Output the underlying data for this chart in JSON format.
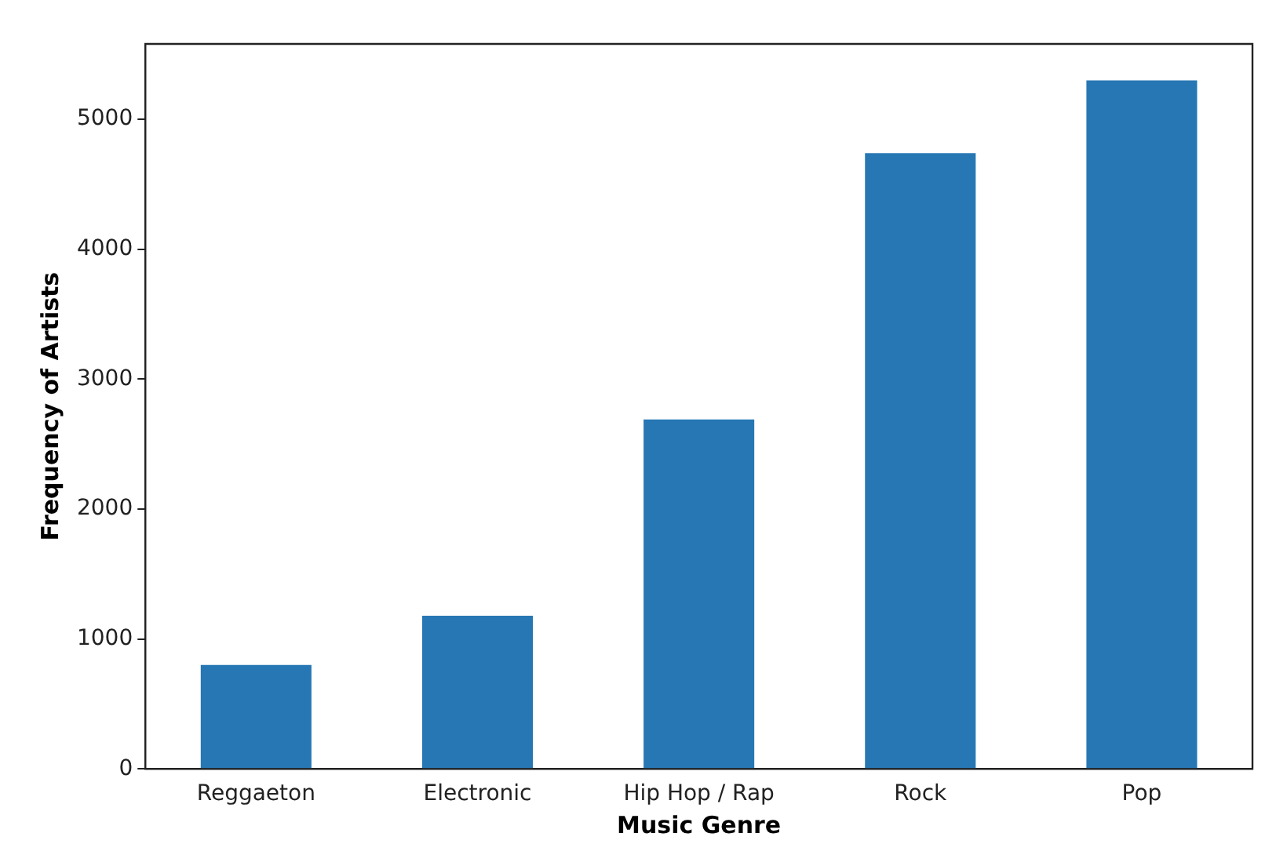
{
  "chart_data": {
    "type": "bar",
    "xlabel": "Music Genre",
    "ylabel": "Frequency of Artists",
    "categories": [
      "Reggaeton",
      "Electronic",
      "Hip Hop / Rap",
      "Rock",
      "Pop"
    ],
    "values": [
      800,
      1180,
      2690,
      4740,
      5300
    ],
    "color": "#2777b4",
    "ylim": [
      0,
      5580
    ],
    "yticks": [
      0,
      1000,
      2000,
      3000,
      4000,
      5000
    ],
    "grid": false,
    "legend": false
  }
}
